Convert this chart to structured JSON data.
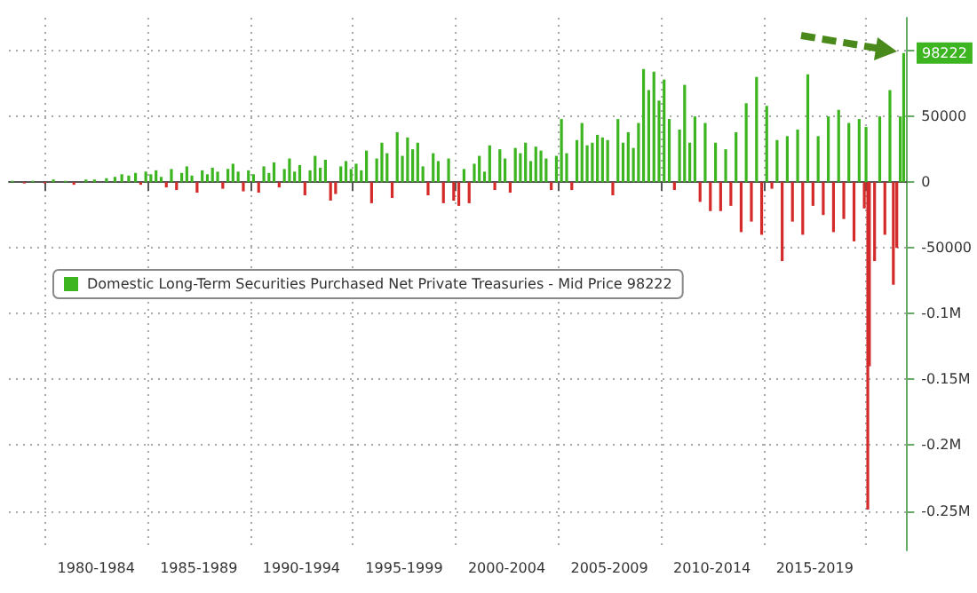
{
  "chart_data": {
    "type": "bar",
    "x": [
      "1978-06",
      "1979-01",
      "1979-06",
      "1980-01",
      "1980-06",
      "1981-01",
      "1981-06",
      "1982-01",
      "1982-06",
      "1983-01",
      "1983-06",
      "1983-10",
      "1984-02",
      "1984-06",
      "1984-09",
      "1984-12",
      "1985-03",
      "1985-06",
      "1985-09",
      "1985-12",
      "1986-03",
      "1986-06",
      "1986-09",
      "1986-12",
      "1987-03",
      "1987-06",
      "1987-09",
      "1987-12",
      "1988-03",
      "1988-06",
      "1988-09",
      "1988-12",
      "1989-03",
      "1989-06",
      "1989-09",
      "1989-12",
      "1990-03",
      "1990-06",
      "1990-09",
      "1990-12",
      "1991-03",
      "1991-06",
      "1991-09",
      "1991-12",
      "1992-03",
      "1992-06",
      "1992-09",
      "1992-12",
      "1993-03",
      "1993-06",
      "1993-09",
      "1993-12",
      "1994-03",
      "1994-06",
      "1994-09",
      "1994-12",
      "1995-03",
      "1995-06",
      "1995-09",
      "1995-12",
      "1996-03",
      "1996-06",
      "1996-09",
      "1996-12",
      "1997-03",
      "1997-06",
      "1997-09",
      "1997-12",
      "1998-03",
      "1998-06",
      "1998-09",
      "1998-12",
      "1999-03",
      "1999-06",
      "1999-09",
      "1999-12",
      "2000-03",
      "2000-06",
      "2000-09",
      "2000-12",
      "2001-03",
      "2001-06",
      "2001-09",
      "2001-12",
      "2002-03",
      "2002-06",
      "2002-09",
      "2002-12",
      "2003-03",
      "2003-06",
      "2003-09",
      "2003-12",
      "2004-03",
      "2004-06",
      "2004-09",
      "2004-12",
      "2005-03",
      "2005-06",
      "2005-09",
      "2005-12",
      "2006-03",
      "2006-06",
      "2006-09",
      "2006-12",
      "2007-03",
      "2007-06",
      "2007-09",
      "2007-12",
      "2008-03",
      "2008-06",
      "2008-09",
      "2008-12",
      "2009-03",
      "2009-06",
      "2009-09",
      "2009-12",
      "2010-03",
      "2010-06",
      "2010-09",
      "2010-12",
      "2011-03",
      "2011-06",
      "2011-09",
      "2011-12",
      "2012-03",
      "2012-06",
      "2012-09",
      "2012-12",
      "2013-03",
      "2013-06",
      "2013-09",
      "2013-12",
      "2014-03",
      "2014-06",
      "2014-09",
      "2014-12",
      "2015-03",
      "2015-06",
      "2015-09",
      "2015-12",
      "2016-03",
      "2016-06",
      "2016-09",
      "2016-12",
      "2017-03",
      "2017-06",
      "2017-09",
      "2017-12",
      "2018-03",
      "2018-06",
      "2018-09",
      "2018-12",
      "2019-03",
      "2019-06",
      "2019-09",
      "2019-12",
      "2020-01",
      "2020-02",
      "2020-03",
      "2020-06",
      "2020-09",
      "2020-12",
      "2021-03",
      "2021-05",
      "2021-07",
      "2021-09",
      "2021-11"
    ],
    "series": [
      {
        "name": "Domestic Long-Term Securities Purchased Net Private Treasuries - Mid Price 98222",
        "color": "#3cb521",
        "colors": [
          "#3cb521",
          "#d42a2a",
          "#3cb521",
          "#d42a2a",
          "#3cb521",
          "#3cb521",
          "#d42a2a",
          "#3cb521",
          "#3cb521",
          "#3cb521",
          "#3cb521",
          "#3cb521",
          "#3cb521",
          "#3cb521",
          "#d42a2a",
          "#3cb521",
          "#3cb521",
          "#3cb521",
          "#3cb521",
          "#d42a2a",
          "#3cb521",
          "#d42a2a",
          "#3cb521",
          "#3cb521",
          "#3cb521",
          "#d42a2a",
          "#3cb521",
          "#3cb521",
          "#3cb521",
          "#3cb521",
          "#d42a2a",
          "#3cb521",
          "#3cb521",
          "#3cb521",
          "#d42a2a",
          "#3cb521",
          "#3cb521",
          "#d42a2a",
          "#3cb521",
          "#3cb521",
          "#3cb521",
          "#d42a2a",
          "#3cb521",
          "#3cb521",
          "#3cb521",
          "#3cb521",
          "#d42a2a",
          "#3cb521",
          "#3cb521",
          "#3cb521",
          "#3cb521",
          "#d42a2a",
          "#d42a2a",
          "#3cb521",
          "#3cb521",
          "#3cb521",
          "#3cb521",
          "#3cb521",
          "#3cb521",
          "#d42a2a",
          "#3cb521",
          "#3cb521",
          "#3cb521",
          "#d42a2a",
          "#3cb521",
          "#3cb521",
          "#3cb521",
          "#3cb521",
          "#3cb521",
          "#3cb521",
          "#d42a2a",
          "#3cb521",
          "#3cb521",
          "#d42a2a",
          "#3cb521",
          "#d42a2a",
          "#d42a2a",
          "#3cb521",
          "#d42a2a",
          "#3cb521",
          "#3cb521",
          "#3cb521",
          "#3cb521",
          "#d42a2a",
          "#3cb521",
          "#3cb521",
          "#d42a2a",
          "#3cb521",
          "#3cb521",
          "#3cb521",
          "#3cb521",
          "#3cb521",
          "#3cb521",
          "#3cb521",
          "#d42a2a",
          "#3cb521",
          "#3cb521",
          "#3cb521",
          "#d42a2a",
          "#3cb521",
          "#3cb521",
          "#3cb521",
          "#3cb521",
          "#3cb521",
          "#3cb521",
          "#3cb521",
          "#d42a2a",
          "#3cb521",
          "#3cb521",
          "#3cb521",
          "#3cb521",
          "#3cb521",
          "#3cb521",
          "#3cb521",
          "#3cb521",
          "#3cb521",
          "#3cb521",
          "#3cb521",
          "#d42a2a",
          "#3cb521",
          "#3cb521",
          "#3cb521",
          "#3cb521",
          "#d42a2a",
          "#3cb521",
          "#d42a2a",
          "#3cb521",
          "#d42a2a",
          "#3cb521",
          "#d42a2a",
          "#3cb521",
          "#d42a2a",
          "#3cb521",
          "#d42a2a",
          "#3cb521",
          "#d42a2a",
          "#3cb521",
          "#d42a2a",
          "#3cb521",
          "#d42a2a",
          "#3cb521",
          "#d42a2a",
          "#3cb521",
          "#d42a2a",
          "#3cb521",
          "#d42a2a",
          "#3cb521",
          "#d42a2a",
          "#3cb521",
          "#d42a2a",
          "#3cb521",
          "#d42a2a",
          "#3cb521",
          "#d42a2a",
          "#3cb521",
          "#d42a2a",
          "#3cb521",
          "#d42a2a",
          "#d42a2a",
          "#d42a2a",
          "#3cb521",
          "#d42a2a",
          "#3cb521",
          "#d42a2a",
          "#d42a2a",
          "#3cb521",
          "#3cb521"
        ],
        "values": [
          1000,
          -1000,
          1000,
          -1000,
          2000,
          1000,
          -2000,
          2000,
          2000,
          3000,
          4000,
          6000,
          5000,
          7000,
          -2000,
          8000,
          6000,
          9000,
          4000,
          -4000,
          10000,
          -6000,
          7000,
          12000,
          5000,
          -8000,
          9000,
          6000,
          11000,
          8000,
          -5000,
          10000,
          14000,
          8000,
          -7000,
          9000,
          6000,
          -8000,
          12000,
          7000,
          15000,
          -4000,
          10000,
          18000,
          8000,
          13000,
          -10000,
          9000,
          20000,
          11000,
          17000,
          -14000,
          -9000,
          12000,
          16000,
          10000,
          14000,
          9000,
          24000,
          -16000,
          18000,
          30000,
          22000,
          -12000,
          38000,
          20000,
          34000,
          25000,
          30000,
          12000,
          -10000,
          22000,
          16000,
          -16000,
          18000,
          -14000,
          -18000,
          10000,
          -16000,
          14000,
          20000,
          8000,
          28000,
          -6000,
          25000,
          18000,
          -8000,
          26000,
          22000,
          30000,
          16000,
          27000,
          24000,
          18000,
          -6000,
          20000,
          48000,
          22000,
          -6000,
          32000,
          45000,
          28000,
          30000,
          36000,
          34000,
          32000,
          -10000,
          48000,
          30000,
          38000,
          26000,
          45000,
          86000,
          70000,
          84000,
          62000,
          78000,
          48000,
          -6000,
          40000,
          74000,
          30000,
          50000,
          -15000,
          45000,
          -22000,
          30000,
          -22000,
          25000,
          -18000,
          38000,
          -38000,
          60000,
          -30000,
          80000,
          -40000,
          58000,
          -5000,
          32000,
          -60000,
          35000,
          -30000,
          40000,
          -40000,
          82000,
          -18000,
          35000,
          -25000,
          50000,
          -38000,
          55000,
          -28000,
          45000,
          -45000,
          48000,
          -20000,
          42000,
          -249000,
          -140000,
          -60000,
          50000,
          -40000,
          70000,
          -78000,
          -50000,
          50000,
          98222
        ]
      }
    ],
    "xlim": [
      "1978-04",
      "2022-01"
    ],
    "xticks": [
      {
        "value": "1980-01",
        "label": null
      },
      {
        "value": "1982-07",
        "label": "1980-1984"
      },
      {
        "value": "1985-01",
        "label": null
      },
      {
        "value": "1987-07",
        "label": "1985-1989"
      },
      {
        "value": "1990-01",
        "label": null
      },
      {
        "value": "1992-07",
        "label": "1990-1994"
      },
      {
        "value": "1995-01",
        "label": null
      },
      {
        "value": "1997-07",
        "label": "1995-1999"
      },
      {
        "value": "2000-01",
        "label": null
      },
      {
        "value": "2002-07",
        "label": "2000-2004"
      },
      {
        "value": "2005-01",
        "label": null
      },
      {
        "value": "2007-07",
        "label": "2005-2009"
      },
      {
        "value": "2010-01",
        "label": null
      },
      {
        "value": "2012-07",
        "label": "2010-2014"
      },
      {
        "value": "2015-01",
        "label": null
      },
      {
        "value": "2017-07",
        "label": "2015-2019"
      },
      {
        "value": "2020-01",
        "label": null
      }
    ],
    "ylim": [
      -280000,
      125000
    ],
    "yticks": [
      {
        "value": -250000,
        "label": "-0.25M"
      },
      {
        "value": -200000,
        "label": "-0.2M"
      },
      {
        "value": -150000,
        "label": "-0.15M"
      },
      {
        "value": -100000,
        "label": "-0.1M"
      },
      -50000,
      0,
      50000,
      {
        "value": 100000,
        "label": null
      }
    ],
    "annotations": [
      {
        "text": "98222",
        "x": "2021-11",
        "y": 98222
      }
    ],
    "grid": true,
    "legend": "left"
  }
}
